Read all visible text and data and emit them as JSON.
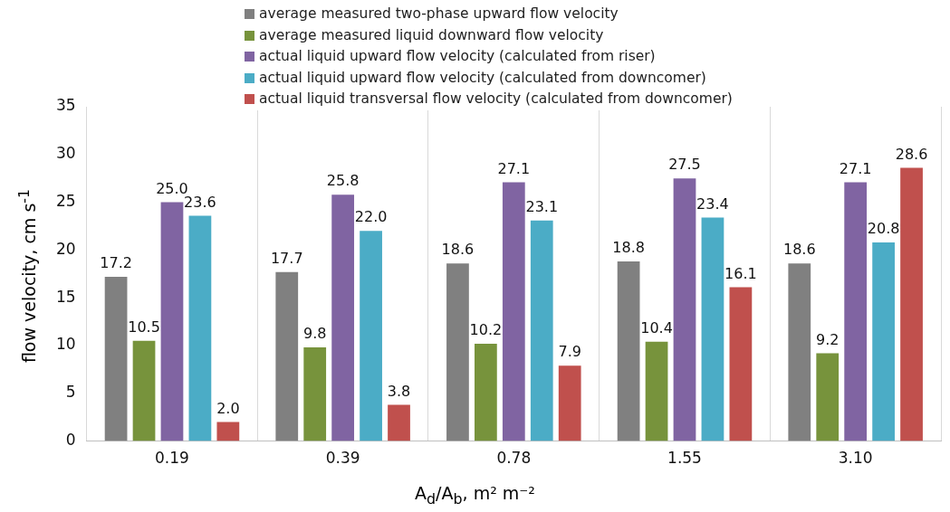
{
  "chart_data": {
    "type": "bar",
    "xlabel": "A$_{d}$/A$_{b}$, m² m⁻²",
    "ylabel": "flow velocity, cm s$^{-1}$",
    "categories": [
      "0.19",
      "0.39",
      "0.78",
      "1.55",
      "3.10"
    ],
    "series": [
      {
        "name": "average measured two-phase upward flow velocity",
        "color": "#808080",
        "values": [
          17.2,
          17.7,
          18.6,
          18.8,
          18.6
        ],
        "value_labels": [
          "17.2",
          "17.7",
          "18.6",
          "18.8",
          "18.6"
        ]
      },
      {
        "name": "average measured liquid downward flow velocity",
        "color": "#77933c",
        "values": [
          10.5,
          9.8,
          10.2,
          10.4,
          9.2
        ],
        "value_labels": [
          "10.5",
          "9.8",
          "10.2",
          "10.4",
          "9.2"
        ]
      },
      {
        "name": "actual liquid upward flow velocity (calculated from riser)",
        "color": "#8064a2",
        "values": [
          25,
          25.8,
          27.1,
          27.5,
          27.1
        ],
        "value_labels": [
          "25.0",
          "25.8",
          "27.1",
          "27.5",
          "27.1"
        ]
      },
      {
        "name": "actual liquid upward flow velocity (calculated from downcomer)",
        "color": "#4bacc6",
        "values": [
          23.6,
          22,
          23.1,
          23.4,
          20.8
        ],
        "value_labels": [
          "23.6",
          "22.0",
          "23.1",
          "23.4",
          "20.8"
        ]
      },
      {
        "name": "actual liquid transversal flow velocity (calculated from downcomer)",
        "color": "#c0504d",
        "values": [
          2,
          3.8,
          7.9,
          16.1,
          28.6
        ],
        "value_labels": [
          "2.0",
          "3.8",
          "7.9",
          "16.1",
          "28.6"
        ]
      }
    ],
    "ylim": [
      0,
      35
    ],
    "yticks": [
      0,
      5,
      10,
      15,
      20,
      25,
      30,
      35
    ],
    "grid": "x",
    "legend": "top"
  }
}
